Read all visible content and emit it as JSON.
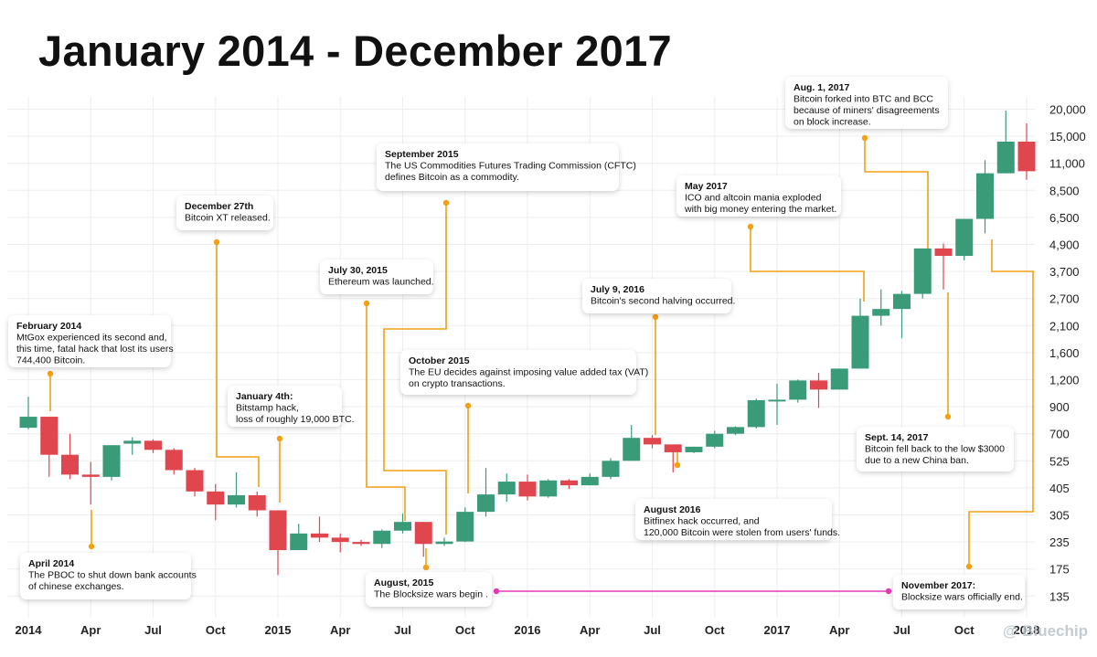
{
  "title": "January 2014 - December 2017",
  "watermark": "@ Bluechip",
  "chart_data": {
    "type": "candlestick",
    "title": "January 2014 - December 2017",
    "x_tick_labels": [
      "2014",
      "Apr",
      "Jul",
      "Oct",
      "2015",
      "Apr",
      "Jul",
      "Oct",
      "2016",
      "Apr",
      "Jul",
      "Oct",
      "2017",
      "Apr",
      "Jul",
      "Oct",
      "2018"
    ],
    "y_tick_labels": [
      "20,000",
      "15,000",
      "11,000",
      "8,500",
      "6,500",
      "4,900",
      "3,700",
      "2,700",
      "2,100",
      "1,600",
      "1,200",
      "900",
      "700",
      "525",
      "405",
      "305",
      "235",
      "175",
      "135"
    ],
    "y_scale": "log",
    "ylim": [
      110,
      20000
    ],
    "grid": true,
    "colors": {
      "up": "#3a9b78",
      "down": "#e0464d",
      "annotation_line": "#f4a012",
      "blocksize_line": "#e838b8"
    },
    "candles": [
      {
        "month": "2014-01",
        "open": 740,
        "high": 1000,
        "low": 730,
        "close": 820
      },
      {
        "month": "2014-02",
        "open": 820,
        "high": 820,
        "low": 450,
        "close": 560
      },
      {
        "month": "2014-03",
        "open": 560,
        "high": 700,
        "low": 440,
        "close": 460
      },
      {
        "month": "2014-04",
        "open": 460,
        "high": 520,
        "low": 340,
        "close": 450
      },
      {
        "month": "2014-05",
        "open": 450,
        "high": 620,
        "low": 435,
        "close": 620
      },
      {
        "month": "2014-06",
        "open": 630,
        "high": 675,
        "low": 560,
        "close": 650
      },
      {
        "month": "2014-07",
        "open": 650,
        "high": 660,
        "low": 570,
        "close": 590
      },
      {
        "month": "2014-08",
        "open": 590,
        "high": 600,
        "low": 460,
        "close": 480
      },
      {
        "month": "2014-09",
        "open": 480,
        "high": 490,
        "low": 370,
        "close": 390
      },
      {
        "month": "2014-10",
        "open": 390,
        "high": 420,
        "low": 290,
        "close": 340
      },
      {
        "month": "2014-11",
        "open": 340,
        "high": 470,
        "low": 330,
        "close": 375
      },
      {
        "month": "2014-12",
        "open": 375,
        "high": 390,
        "low": 300,
        "close": 320
      },
      {
        "month": "2015-01",
        "open": 320,
        "high": 320,
        "low": 165,
        "close": 215
      },
      {
        "month": "2015-02",
        "open": 215,
        "high": 280,
        "low": 215,
        "close": 255
      },
      {
        "month": "2015-03",
        "open": 255,
        "high": 300,
        "low": 235,
        "close": 245
      },
      {
        "month": "2015-04",
        "open": 245,
        "high": 255,
        "low": 210,
        "close": 235
      },
      {
        "month": "2015-05",
        "open": 235,
        "high": 240,
        "low": 225,
        "close": 230
      },
      {
        "month": "2015-06",
        "open": 230,
        "high": 265,
        "low": 220,
        "close": 262
      },
      {
        "month": "2015-07",
        "open": 262,
        "high": 310,
        "low": 255,
        "close": 285
      },
      {
        "month": "2015-08",
        "open": 285,
        "high": 285,
        "low": 200,
        "close": 230
      },
      {
        "month": "2015-09",
        "open": 230,
        "high": 245,
        "low": 225,
        "close": 236
      },
      {
        "month": "2015-10",
        "open": 236,
        "high": 330,
        "low": 235,
        "close": 315
      },
      {
        "month": "2015-11",
        "open": 315,
        "high": 490,
        "low": 300,
        "close": 378
      },
      {
        "month": "2015-12",
        "open": 378,
        "high": 465,
        "low": 350,
        "close": 430
      },
      {
        "month": "2016-01",
        "open": 430,
        "high": 460,
        "low": 355,
        "close": 370
      },
      {
        "month": "2016-02",
        "open": 370,
        "high": 440,
        "low": 365,
        "close": 435
      },
      {
        "month": "2016-03",
        "open": 435,
        "high": 440,
        "low": 400,
        "close": 415
      },
      {
        "month": "2016-04",
        "open": 415,
        "high": 465,
        "low": 415,
        "close": 450
      },
      {
        "month": "2016-05",
        "open": 450,
        "high": 540,
        "low": 440,
        "close": 525
      },
      {
        "month": "2016-06",
        "open": 525,
        "high": 760,
        "low": 525,
        "close": 670
      },
      {
        "month": "2016-07",
        "open": 670,
        "high": 690,
        "low": 600,
        "close": 625
      },
      {
        "month": "2016-08",
        "open": 625,
        "high": 625,
        "low": 470,
        "close": 575
      },
      {
        "month": "2016-09",
        "open": 575,
        "high": 610,
        "low": 570,
        "close": 610
      },
      {
        "month": "2016-10",
        "open": 610,
        "high": 720,
        "low": 600,
        "close": 700
      },
      {
        "month": "2016-11",
        "open": 700,
        "high": 750,
        "low": 690,
        "close": 745
      },
      {
        "month": "2016-12",
        "open": 745,
        "high": 980,
        "low": 735,
        "close": 965
      },
      {
        "month": "2017-01",
        "open": 965,
        "high": 1150,
        "low": 760,
        "close": 970
      },
      {
        "month": "2017-02",
        "open": 970,
        "high": 1200,
        "low": 940,
        "close": 1190
      },
      {
        "month": "2017-03",
        "open": 1190,
        "high": 1290,
        "low": 890,
        "close": 1080
      },
      {
        "month": "2017-04",
        "open": 1080,
        "high": 1350,
        "low": 1080,
        "close": 1350
      },
      {
        "month": "2017-05",
        "open": 1350,
        "high": 2700,
        "low": 1350,
        "close": 2300
      },
      {
        "month": "2017-06",
        "open": 2300,
        "high": 3000,
        "low": 2100,
        "close": 2450
      },
      {
        "month": "2017-07",
        "open": 2450,
        "high": 2950,
        "low": 1850,
        "close": 2850
      },
      {
        "month": "2017-08",
        "open": 2850,
        "high": 4700,
        "low": 2700,
        "close": 4700
      },
      {
        "month": "2017-09",
        "open": 4700,
        "high": 4950,
        "low": 3000,
        "close": 4350
      },
      {
        "month": "2017-10",
        "open": 4350,
        "high": 6400,
        "low": 4150,
        "close": 6400
      },
      {
        "month": "2017-11",
        "open": 6400,
        "high": 11400,
        "low": 5500,
        "close": 10000
      },
      {
        "month": "2017-12",
        "open": 10000,
        "high": 19700,
        "low": 10000,
        "close": 14100
      },
      {
        "month": "2018-01",
        "open": 14100,
        "high": 17200,
        "low": 9400,
        "close": 10200
      }
    ],
    "annotations": [
      {
        "id": "feb-2014",
        "date": "2014-02",
        "title": "February 2014",
        "text": "MtGox experienced its second and,\nthis time, fatal hack that lost its users\n744,400 Bitcoin."
      },
      {
        "id": "apr-2014",
        "date": "2014-04",
        "title": "April 2014",
        "text": "The PBOC to shut down bank accounts\nof chinese exchanges."
      },
      {
        "id": "dec-27th",
        "date": "2014-12",
        "title": "December 27th",
        "text": "Bitcoin XT released."
      },
      {
        "id": "jan-4th",
        "date": "2015-01",
        "title": "January 4th:",
        "text": "Bitstamp hack,\nloss of roughly 19,000 BTC."
      },
      {
        "id": "jul-30-2015",
        "date": "2015-07",
        "title": "July 30, 2015",
        "text": "Ethereum was launched."
      },
      {
        "id": "aug-2015",
        "date": "2015-08",
        "title": "August, 2015",
        "text": "The Blocksize wars begin ."
      },
      {
        "id": "sep-2015",
        "date": "2015-09",
        "title": "September 2015",
        "text": "The US Commodities Futures Trading Commission (CFTC)\ndefines Bitcoin as a commodity."
      },
      {
        "id": "oct-2015",
        "date": "2015-10",
        "title": "October 2015",
        "text": "The EU decides against imposing value added tax (VAT)\non crypto transactions."
      },
      {
        "id": "jul-9-2016",
        "date": "2016-07",
        "title": "July 9, 2016",
        "text": "Bitcoin's second halving occurred."
      },
      {
        "id": "aug-2016",
        "date": "2016-08",
        "title": "August 2016",
        "text": "Bitfinex hack occurred, and\n120,000 Bitcoin were stolen from users' funds."
      },
      {
        "id": "may-2017",
        "date": "2017-05",
        "title": "May 2017",
        "text": "ICO and altcoin mania exploded\nwith big money entering the market."
      },
      {
        "id": "aug-1-2017",
        "date": "2017-08",
        "title": "Aug. 1, 2017",
        "text": "Bitcoin forked into BTC and BCC\nbecause of miners' disagreements\non block increase."
      },
      {
        "id": "sep-14-2017",
        "date": "2017-09",
        "title": "Sept. 14, 2017",
        "text": "Bitcoin fell back to the low $3000\ndue to a new China ban."
      },
      {
        "id": "nov-2017",
        "date": "2017-11",
        "title": "November 2017:",
        "text": "Blocksize wars officially end."
      }
    ]
  }
}
